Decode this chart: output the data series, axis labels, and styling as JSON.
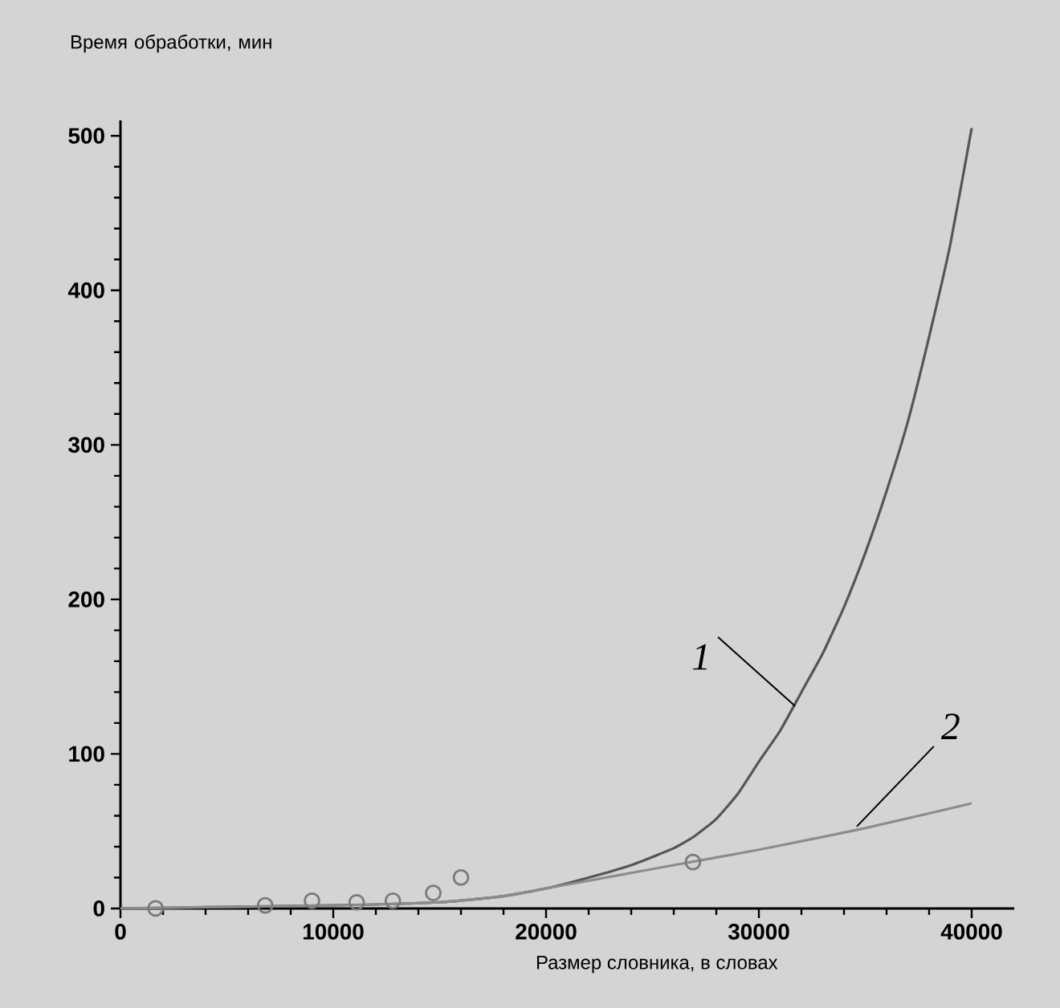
{
  "chart_data": {
    "type": "line",
    "xlabel": "Размер словника, в словах",
    "ylabel": "Время обработки, мин",
    "xlim": [
      0,
      42000
    ],
    "ylim": [
      0,
      510
    ],
    "xticks": [
      0,
      10000,
      20000,
      30000,
      40000
    ],
    "yticks": [
      0,
      100,
      200,
      300,
      400,
      500
    ],
    "series": [
      {
        "color": "#555555",
        "x": [
          0,
          5000,
          10000,
          15000,
          18000,
          20000,
          22000,
          24000,
          26000,
          27000,
          28000,
          29000,
          30000,
          31000,
          32000,
          33000,
          34000,
          35000,
          36000,
          37000,
          38000,
          39000,
          40000
        ],
        "values": [
          0,
          1,
          2,
          4,
          8,
          13,
          20,
          28,
          39,
          47,
          58,
          74,
          95,
          115,
          140,
          165,
          195,
          230,
          270,
          315,
          370,
          430,
          505
        ]
      },
      {
        "color": "#8c8c8c",
        "x": [
          0,
          5000,
          10000,
          15000,
          18000,
          20000,
          22000,
          26000,
          30000,
          35000,
          40000
        ],
        "values": [
          0,
          1,
          2,
          4,
          8,
          13,
          18,
          28,
          38,
          52,
          68
        ]
      },
      {
        "type": "scatter",
        "marker": "circle",
        "color": "#7a7a7a",
        "x": [
          1650,
          6800,
          9000,
          11100,
          12800,
          14700,
          16000,
          26900
        ],
        "values": [
          0,
          2,
          5,
          4,
          5,
          10,
          20,
          30
        ]
      }
    ],
    "annotations": [
      {
        "text": "1",
        "x": 31700,
        "y": 131
      },
      {
        "text": "2",
        "x": 34600,
        "y": 53
      }
    ],
    "grid": false
  }
}
